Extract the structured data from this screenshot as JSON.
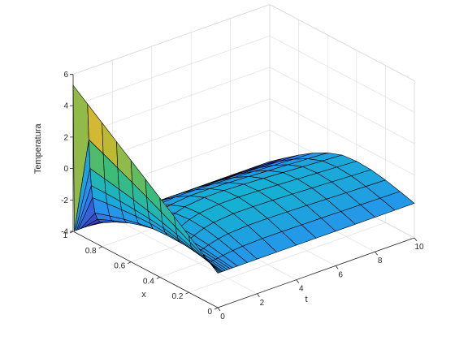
{
  "chart_data": {
    "type": "surface",
    "title": "",
    "xlabel": "t",
    "ylabel": "x",
    "zlabel": "Temperatura",
    "xlim": [
      0,
      10
    ],
    "ylim": [
      0,
      1
    ],
    "zlim": [
      -4,
      6
    ],
    "x_ticks": [
      "0",
      "2",
      "4",
      "6",
      "8",
      "10"
    ],
    "y_ticks": [
      "0",
      "0.2",
      "0.4",
      "0.6",
      "0.8",
      "1"
    ],
    "z_ticks": [
      "-4",
      "-2",
      "0",
      "2",
      "4",
      "6"
    ],
    "grid": true,
    "colormap": "parula",
    "colormap_stops": [
      "#3e26a8",
      "#2e87f7",
      "#15b2d1",
      "#3ebc74",
      "#c2b92f",
      "#fcba3d",
      "#f9fb15"
    ],
    "edge_color": "#000000",
    "t_samples": [
      0,
      0.06,
      0.13,
      0.19,
      0.25,
      0.38,
      0.5,
      0.63,
      0.75,
      1.0,
      1.5,
      2.0,
      3.0,
      4.0,
      5.0,
      6.0,
      7.0,
      8.0,
      9.0,
      10.0
    ],
    "x_samples": [
      0,
      0.1,
      0.2,
      0.3,
      0.4,
      0.5,
      0.6,
      0.7,
      0.8,
      0.9,
      1.0
    ],
    "temperature_at_x0": -1.8,
    "temperature_at_x1_t0": 5.3,
    "temperature_at_x1_t_gt0": -4.0
  }
}
